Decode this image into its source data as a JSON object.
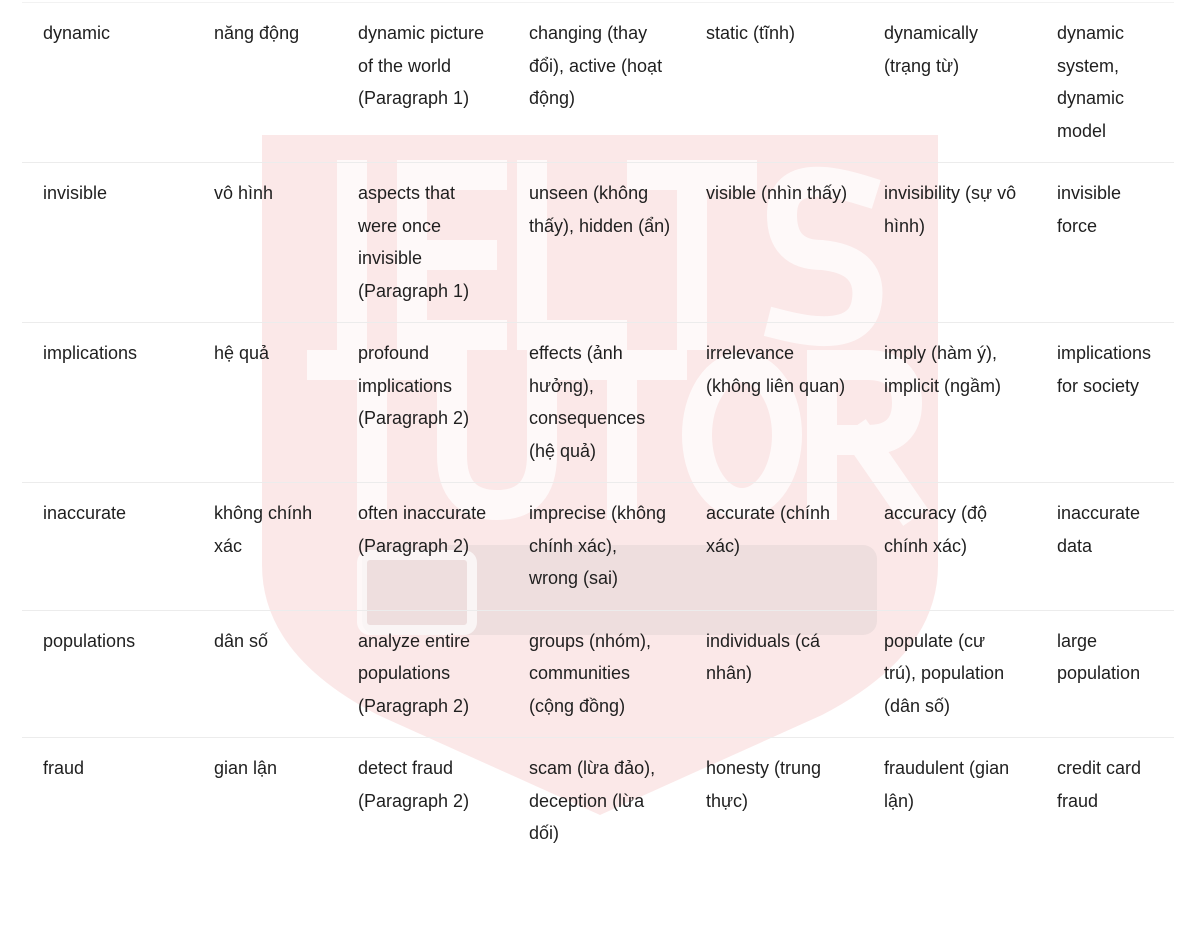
{
  "watermark": {
    "line1": "IELTS",
    "line2": "TUTOR",
    "line3": "Online 1 kèm 1",
    "color": "#e05050"
  },
  "rows": [
    [
      "dynamic",
      "năng động",
      "dynamic picture of the world (Paragraph 1)",
      "changing (thay đổi), active (hoạt động)",
      "static (tĩnh)",
      "dynamically (trạng từ)",
      "dynamic system, dynamic model"
    ],
    [
      "invisible",
      "vô hình",
      "aspects that were once invisible (Paragraph 1)",
      "unseen (không thấy), hidden (ẩn)",
      "visible (nhìn thấy)",
      "invisibility (sự vô hình)",
      "invisible force"
    ],
    [
      "implications",
      "hệ quả",
      "profound implications (Paragraph 2)",
      "effects (ảnh hưởng), consequences (hệ quả)",
      "irrelevance (không liên quan)",
      "imply (hàm ý), implicit (ngầm)",
      "implications for society"
    ],
    [
      "inaccurate",
      "không chính xác",
      "often inaccurate (Paragraph 2)",
      "imprecise (không chính xác), wrong (sai)",
      "accurate (chính xác)",
      "accuracy (độ chính xác)",
      "inaccurate data"
    ],
    [
      "populations",
      "dân số",
      "analyze entire populations (Paragraph 2)",
      "groups (nhóm), communities (cộng đồng)",
      "individuals (cá nhân)",
      "populate (cư trú), population (dân số)",
      "large population"
    ],
    [
      "fraud",
      "gian lận",
      "detect fraud (Paragraph 2)",
      "scam (lừa đảo), deception (lừa dối)",
      "honesty (trung thực)",
      "fraudulent (gian lận)",
      "credit card fraud"
    ]
  ]
}
